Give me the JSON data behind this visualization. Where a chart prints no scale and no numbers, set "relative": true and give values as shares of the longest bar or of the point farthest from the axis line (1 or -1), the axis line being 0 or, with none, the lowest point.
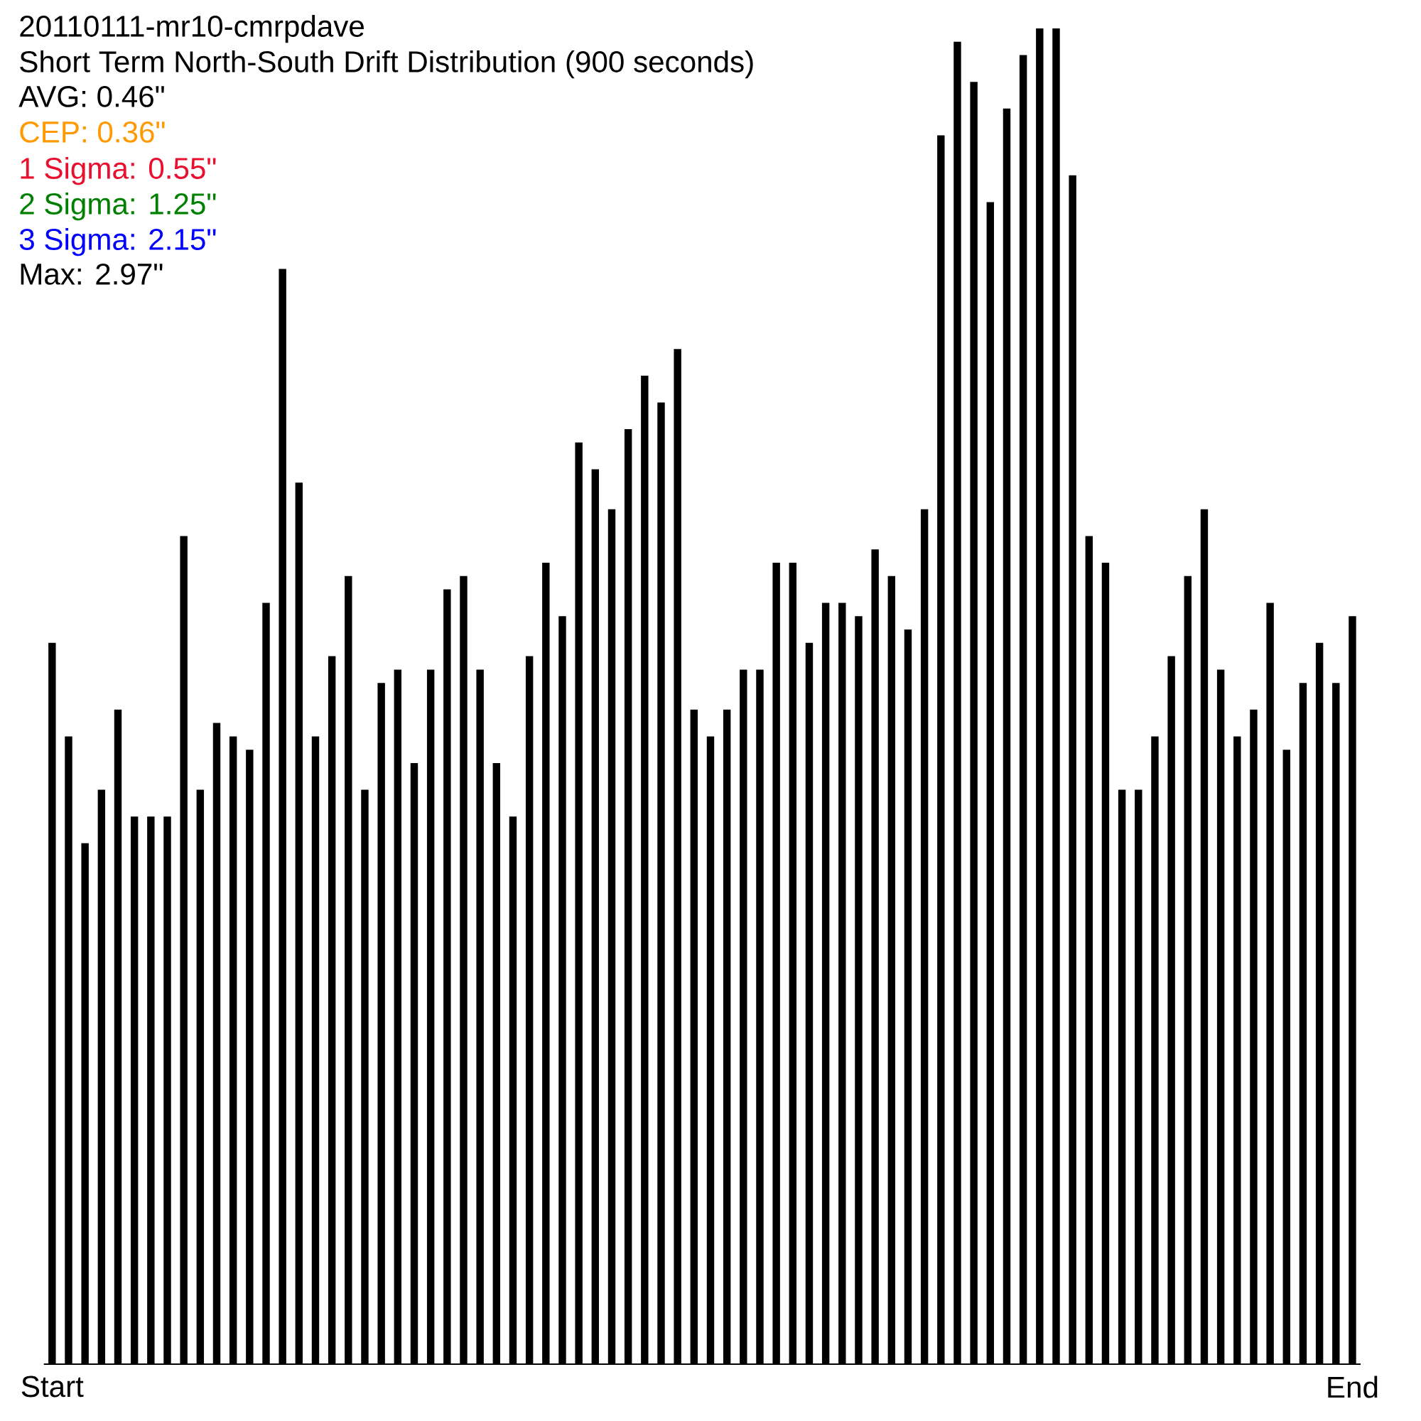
{
  "chart_data": {
    "type": "bar",
    "relative": true,
    "title": "20110111-mr10-cmrpdave",
    "subtitle": "Short Term North-South Drift Distribution (900 seconds)",
    "annotations": [
      "AVG: 0.46\"",
      "CEP: 0.36\"",
      "1 Sigma: 0.55\"",
      "2 Sigma: 1.25\"",
      "3 Sigma: 2.15\"",
      "Max: 2.97\""
    ],
    "categories": [
      "Start",
      null,
      null,
      null,
      null,
      null,
      null,
      null,
      null,
      null,
      null,
      null,
      null,
      null,
      null,
      null,
      null,
      null,
      null,
      null,
      null,
      null,
      null,
      null,
      null,
      null,
      null,
      null,
      null,
      null,
      null,
      null,
      null,
      null,
      null,
      null,
      null,
      null,
      null,
      null,
      null,
      null,
      null,
      null,
      null,
      null,
      null,
      null,
      null,
      null,
      null,
      null,
      null,
      null,
      null,
      null,
      null,
      null,
      null,
      null,
      null,
      null,
      null,
      null,
      null,
      null,
      null,
      null,
      null,
      null,
      null,
      null,
      null,
      null,
      null,
      null,
      null,
      null,
      null,
      "End"
    ],
    "values": [
      0.54,
      0.47,
      0.39,
      0.43,
      0.49,
      0.41,
      0.41,
      0.41,
      0.62,
      0.43,
      0.48,
      0.47,
      0.46,
      0.57,
      0.82,
      0.66,
      0.47,
      0.53,
      0.59,
      0.43,
      0.51,
      0.52,
      0.45,
      0.52,
      0.58,
      0.59,
      0.52,
      0.45,
      0.41,
      0.53,
      0.6,
      0.56,
      0.69,
      0.67,
      0.64,
      0.7,
      0.74,
      0.72,
      0.76,
      0.49,
      0.47,
      0.49,
      0.52,
      0.52,
      0.6,
      0.6,
      0.54,
      0.57,
      0.57,
      0.56,
      0.61,
      0.59,
      0.55,
      0.64,
      0.92,
      0.99,
      0.96,
      0.87,
      0.94,
      0.98,
      1,
      1,
      0.89,
      0.62,
      0.6,
      0.43,
      0.43,
      0.47,
      0.53,
      0.59,
      0.64,
      0.52,
      0.47,
      0.49,
      0.57,
      0.46,
      0.51,
      0.54,
      0.51,
      0.56
    ],
    "color": "#000000"
  }
}
